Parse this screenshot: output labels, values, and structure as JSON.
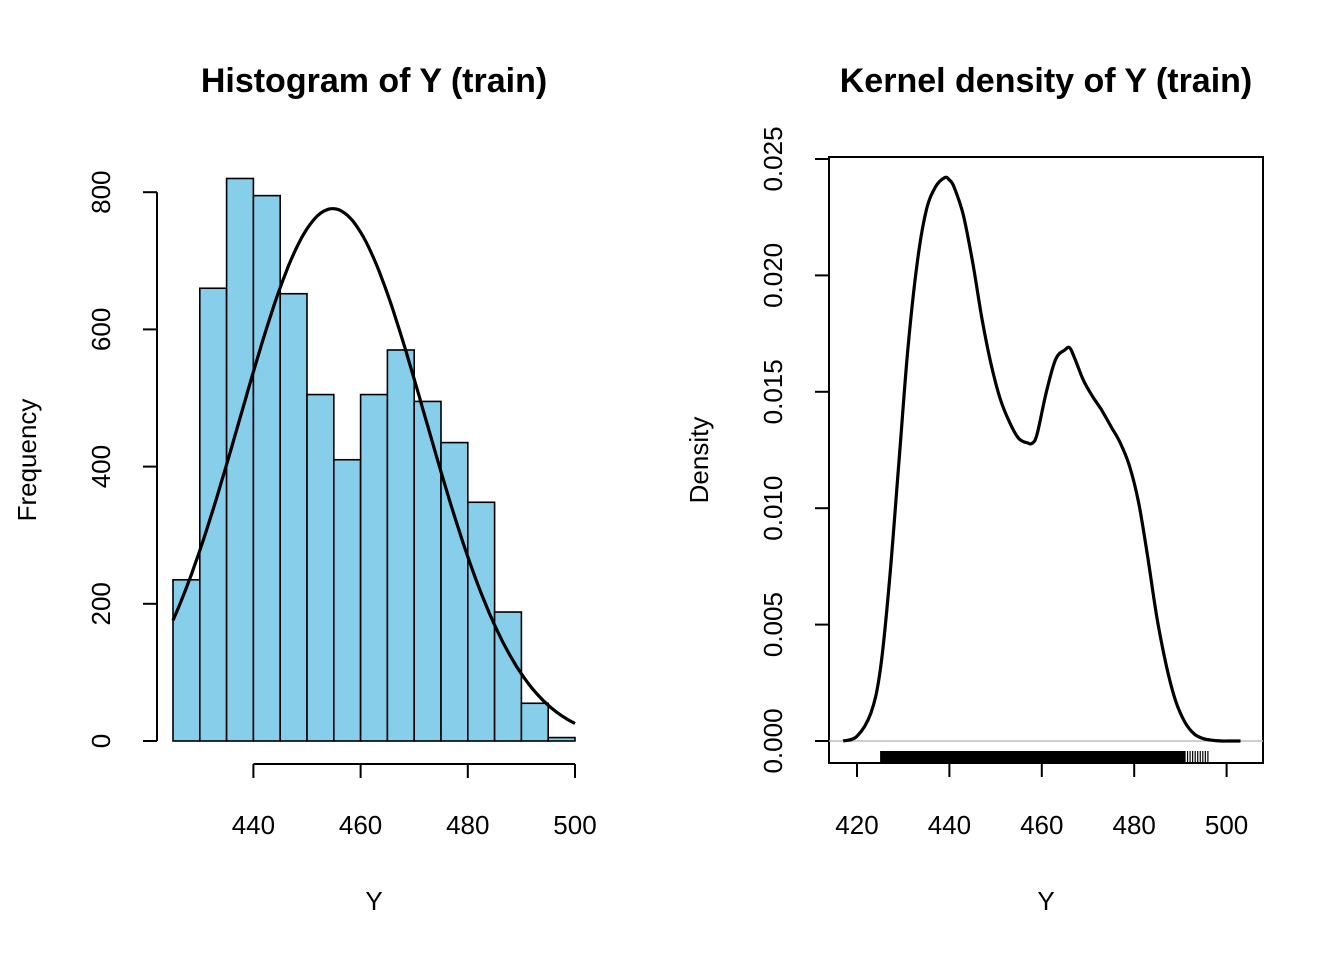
{
  "chart_data": [
    {
      "type": "bar",
      "title": "Histogram of Y (train)",
      "xlabel": "Y",
      "ylabel": "Frequency",
      "bin_edges": [
        425,
        430,
        435,
        440,
        445,
        450,
        455,
        460,
        465,
        470,
        475,
        480,
        485,
        490,
        495,
        500
      ],
      "values": [
        235,
        660,
        820,
        795,
        652,
        505,
        410,
        505,
        570,
        495,
        435,
        348,
        188,
        55,
        5
      ],
      "xlim": [
        425,
        500
      ],
      "ylim": [
        0,
        800
      ],
      "xticks": [
        440,
        460,
        480,
        500
      ],
      "yticks": [
        0,
        200,
        400,
        600,
        800
      ],
      "overlay": {
        "type": "normal_curve",
        "mean": 454.8,
        "peak": 776
      },
      "colors": {
        "bar": "#87ceeb",
        "line": "#000000"
      }
    },
    {
      "type": "line",
      "title": "Kernel density of Y (train)",
      "xlabel": "Y",
      "ylabel": "Density",
      "x": [
        417,
        420,
        423,
        425,
        427,
        429,
        431,
        433,
        435,
        437,
        439,
        440,
        441,
        443,
        445,
        447,
        449,
        451,
        453,
        455,
        457,
        458,
        459,
        461,
        463,
        465,
        466,
        467,
        469,
        471,
        473,
        475,
        477,
        479,
        481,
        483,
        485,
        487,
        489,
        491,
        493,
        495,
        497,
        499,
        501,
        503
      ],
      "y": [
        0.0,
        0.0002,
        0.0012,
        0.003,
        0.0068,
        0.0118,
        0.0168,
        0.0205,
        0.0228,
        0.0238,
        0.0242,
        0.0241,
        0.0238,
        0.0226,
        0.0206,
        0.0182,
        0.0162,
        0.0147,
        0.0137,
        0.013,
        0.0128,
        0.0128,
        0.0132,
        0.015,
        0.0164,
        0.0168,
        0.0169,
        0.0165,
        0.0155,
        0.0148,
        0.0142,
        0.0135,
        0.0128,
        0.0118,
        0.0102,
        0.0078,
        0.0052,
        0.0032,
        0.0017,
        0.0008,
        0.0003,
        0.0001,
        3e-05,
        0.0,
        0.0,
        0.0
      ],
      "rug_range": [
        425,
        496
      ],
      "xlim": [
        415,
        505
      ],
      "ylim": [
        0,
        0.025
      ],
      "xticks": [
        420,
        440,
        460,
        480,
        500
      ],
      "ytick_labels": [
        "0.000",
        "0.005",
        "0.010",
        "0.015",
        "0.020",
        "0.025"
      ],
      "yticks": [
        0,
        0.005,
        0.01,
        0.015,
        0.02,
        0.025
      ],
      "colors": {
        "line": "#000000"
      }
    }
  ]
}
